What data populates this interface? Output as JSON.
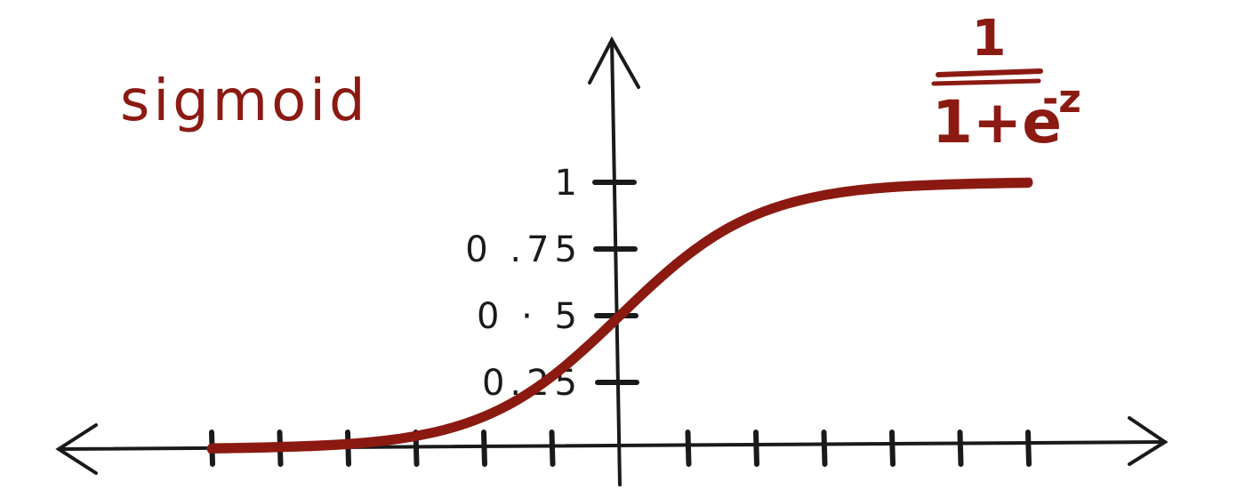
{
  "colors": {
    "ink": "#1a1a1a",
    "curve": "#8b1a12"
  },
  "chart_data": {
    "type": "line",
    "title": "sigmoid",
    "formula": {
      "numerator": "1",
      "denominator_base": "1+e",
      "exponent": "-z"
    },
    "xlabel": "",
    "ylabel": "",
    "x_ticks": [
      -6,
      -5,
      -4,
      -3,
      -2,
      -1,
      1,
      2,
      3,
      4,
      5,
      6
    ],
    "y_ticks": [
      {
        "value": 0.25,
        "label": "0.25"
      },
      {
        "value": 0.5,
        "label": "0 · 5"
      },
      {
        "value": 0.75,
        "label": "0 .75"
      },
      {
        "value": 1,
        "label": "1"
      }
    ],
    "xlim": [
      -6,
      6
    ],
    "ylim": [
      0,
      1
    ],
    "grid": false,
    "series": [
      {
        "x": [
          -6,
          -5.5,
          -5,
          -4.5,
          -4,
          -3.5,
          -3,
          -2.5,
          -2,
          -1.5,
          -1,
          -0.5,
          0,
          0.5,
          1,
          1.5,
          2,
          2.5,
          3,
          3.5,
          4,
          4.5,
          5,
          5.5,
          6
        ],
        "y": [
          0.002,
          0.004,
          0.007,
          0.011,
          0.018,
          0.029,
          0.047,
          0.076,
          0.119,
          0.182,
          0.269,
          0.378,
          0.5,
          0.622,
          0.731,
          0.818,
          0.881,
          0.924,
          0.953,
          0.971,
          0.982,
          0.989,
          0.993,
          0.996,
          0.998
        ]
      }
    ]
  }
}
